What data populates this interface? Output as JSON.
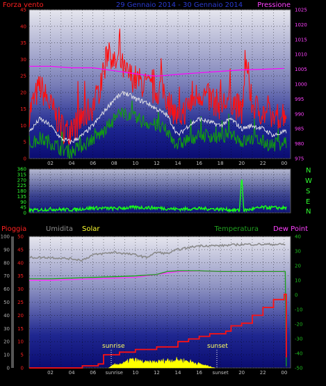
{
  "colors": {
    "wind_max": "#ff1010",
    "wind_avg": "#e8e8e8",
    "wind_min": "#129a12",
    "pressure": "#ff00ff",
    "direction": "#18ff18",
    "rain": "#ff1010",
    "humidity": "#8a8a8a",
    "solar": "#ffff00",
    "temperature": "#1aa01a",
    "dewpoint": "#ff30ff",
    "wind_axis": "#ff2020",
    "pressure_axis": "#ff40ff",
    "direction_axis": "#30ff30",
    "rain_axis": "#ff2020",
    "humidity_axis": "#b0b0b0",
    "temp_axis": "#20c020"
  },
  "header": {
    "wind_label": "Forza vento",
    "date_range": "29 Gennaio 2014 - 30 Gennaio 2014",
    "pressure_label": "Pressione"
  },
  "legend2": {
    "rain_label": "Pioggia",
    "humidity_label": "Umidita",
    "solar_label": "Solar",
    "temp_label": "Temperatura",
    "dew_label": "Dew Point"
  },
  "compass": [
    "N",
    "W",
    "S",
    "E",
    "N"
  ],
  "annotations": {
    "sunrise": "sunrise",
    "sunset": "sunset"
  },
  "chart_data": [
    {
      "type": "line",
      "title": "29 Gennaio 2014 - 30 Gennaio 2014",
      "x_ticks": [
        "02",
        "04",
        "06",
        "08",
        "10",
        "12",
        "14",
        "16",
        "18",
        "20",
        "22",
        "00"
      ],
      "x_tick_hours": [
        2,
        4,
        6,
        8,
        10,
        12,
        14,
        16,
        18,
        20,
        22,
        24
      ],
      "xlim": [
        0,
        24.6
      ],
      "left_axis": {
        "label": "Forza vento",
        "ylim": [
          0,
          45
        ],
        "ticks": [
          0,
          5,
          10,
          15,
          20,
          25,
          30,
          35,
          40,
          45
        ]
      },
      "right_axis": {
        "label": "Pressione",
        "ylim": [
          975,
          1025
        ],
        "ticks": [
          975,
          980,
          985,
          990,
          995,
          1000,
          1005,
          1010,
          1015,
          1020,
          1025
        ]
      },
      "grid": true,
      "series": [
        {
          "name": "wind_max",
          "axis": "left",
          "style": "spiky",
          "x": [
            0,
            1,
            2,
            3,
            3.5,
            4,
            5,
            6,
            6.5,
            7,
            7.5,
            8,
            8.5,
            9,
            10,
            11,
            12,
            12.5,
            13,
            14,
            15,
            16,
            17,
            18,
            19,
            20,
            20.5,
            21,
            22,
            23,
            24
          ],
          "y": [
            14,
            22,
            16,
            10,
            8,
            9,
            12,
            16,
            20,
            26,
            34,
            28,
            30,
            26,
            24,
            22,
            20,
            22,
            18,
            12,
            16,
            20,
            18,
            16,
            18,
            14,
            28,
            16,
            14,
            12,
            14
          ]
        },
        {
          "name": "wind_avg",
          "axis": "left",
          "style": "line",
          "x": [
            0,
            1,
            2,
            3,
            4,
            5,
            6,
            7,
            8,
            9,
            10,
            11,
            12,
            13,
            14,
            15,
            16,
            17,
            18,
            19,
            20,
            21,
            22,
            23,
            24
          ],
          "y": [
            8,
            12,
            10,
            6,
            5,
            7,
            10,
            14,
            18,
            20,
            18,
            17,
            15,
            13,
            7,
            10,
            12,
            11,
            10,
            12,
            9,
            10,
            9,
            7,
            8
          ]
        },
        {
          "name": "wind_min",
          "axis": "left",
          "style": "spiky",
          "x": [
            0,
            1,
            2,
            3,
            4,
            5,
            6,
            7,
            8,
            9,
            10,
            11,
            12,
            13,
            14,
            15,
            16,
            17,
            18,
            19,
            20,
            21,
            22,
            23,
            24
          ],
          "y": [
            4,
            6,
            5,
            3,
            2,
            4,
            6,
            8,
            12,
            14,
            12,
            11,
            10,
            8,
            4,
            6,
            7,
            7,
            6,
            8,
            5,
            6,
            5,
            4,
            5
          ]
        },
        {
          "name": "pressure",
          "axis": "right",
          "style": "line",
          "x": [
            0,
            2,
            4,
            6,
            7,
            8,
            9,
            10,
            11,
            12,
            13,
            14,
            16,
            18,
            20,
            22,
            24
          ],
          "y": [
            1006,
            1006,
            1005.5,
            1005.5,
            1005,
            1004.5,
            1004,
            1003.5,
            1003,
            1002.7,
            1003,
            1003.3,
            1003.8,
            1004.3,
            1004.8,
            1005,
            1005.3
          ]
        }
      ]
    },
    {
      "type": "line",
      "title": "",
      "x_ticks": [],
      "xlim": [
        0,
        24.6
      ],
      "left_axis": {
        "label": "",
        "ylim": [
          0,
          360
        ],
        "ticks": [
          0,
          45,
          90,
          135,
          180,
          225,
          270,
          315,
          360
        ]
      },
      "right_axis": {
        "label": "",
        "tick_labels": [
          "N",
          "W",
          "S",
          "E",
          "N"
        ]
      },
      "grid": true,
      "series": [
        {
          "name": "direction",
          "axis": "left",
          "style": "spiky",
          "x": [
            0,
            2,
            4,
            6,
            8,
            10,
            12,
            14,
            16,
            18,
            19.8,
            20,
            20.2,
            22,
            24
          ],
          "y": [
            20,
            30,
            25,
            40,
            35,
            45,
            40,
            30,
            35,
            30,
            20,
            310,
            20,
            45,
            40
          ]
        }
      ]
    },
    {
      "type": "line",
      "title": "",
      "x_ticks": [
        "02",
        "04",
        "06",
        "sunrise",
        "10",
        "12",
        "14",
        "16",
        "sunset",
        "20",
        "22",
        "00"
      ],
      "x_tick_hours": [
        2,
        4,
        6,
        8,
        10,
        12,
        14,
        16,
        18,
        20,
        22,
        24
      ],
      "xlim": [
        0,
        24.6
      ],
      "left_axis": {
        "label": "Pioggia",
        "ylim": [
          0,
          50
        ],
        "ticks": [
          0,
          5,
          10,
          15,
          20,
          25,
          30,
          35,
          40,
          45,
          50
        ]
      },
      "left2_axis": {
        "label": "Umidita",
        "ylim": [
          0,
          100
        ],
        "ticks": [
          0,
          10,
          20,
          30,
          40,
          50,
          60,
          70,
          80,
          90,
          100
        ]
      },
      "right_axis": {
        "label": "Temperatura",
        "ylim": [
          -50,
          40
        ],
        "ticks": [
          -50,
          -40,
          -30,
          -20,
          -10,
          0,
          10,
          20,
          30,
          40
        ]
      },
      "grid": true,
      "series": [
        {
          "name": "rain",
          "axis": "left",
          "style": "step",
          "x": [
            0,
            4,
            5,
            6.5,
            7,
            8.5,
            10,
            12,
            14,
            15,
            16,
            17,
            18,
            18.5,
            19,
            20,
            21,
            22,
            23,
            24,
            24.1,
            24.2
          ],
          "y": [
            0,
            0,
            0.8,
            1.5,
            5,
            6,
            7,
            8,
            10,
            11,
            12,
            13,
            13,
            14,
            16,
            17,
            20,
            23,
            26,
            28,
            28,
            4
          ]
        },
        {
          "name": "humidity",
          "axis": "left2",
          "style": "line",
          "x": [
            0,
            2,
            4,
            5,
            6,
            8,
            10,
            11,
            12,
            13,
            14,
            16,
            18,
            20,
            22,
            24,
            24.1
          ],
          "y": [
            84,
            84,
            83,
            82,
            86,
            88,
            86,
            84,
            88,
            87,
            90,
            93,
            93,
            94,
            94,
            94,
            94
          ]
        },
        {
          "name": "solar",
          "axis": "left",
          "style": "area",
          "x": [
            7.5,
            8,
            9,
            9.5,
            10,
            11,
            12,
            13,
            14,
            15,
            16,
            17,
            17.5
          ],
          "y": [
            0,
            1.2,
            1.8,
            3,
            2.8,
            2,
            2.2,
            2.8,
            3,
            2.5,
            1.5,
            0.5,
            0
          ]
        },
        {
          "name": "temperature",
          "axis": "right",
          "style": "line",
          "x": [
            0,
            2,
            4,
            6,
            8,
            10,
            12,
            13,
            14,
            16,
            18,
            20,
            22,
            24,
            24.1,
            24.2
          ],
          "y": [
            11,
            11,
            11.5,
            12,
            12.5,
            13,
            14,
            16,
            16.5,
            16.5,
            16,
            16,
            16,
            16,
            16,
            -49
          ]
        },
        {
          "name": "dewpoint",
          "axis": "right",
          "style": "line",
          "x": [
            0,
            2,
            4,
            6,
            8,
            10,
            12,
            13,
            14,
            16,
            18,
            20,
            22,
            24
          ],
          "y": [
            10,
            10,
            10.5,
            11,
            11.5,
            12,
            14,
            15,
            16,
            16.5,
            16,
            16,
            16,
            16
          ]
        }
      ],
      "annotations": [
        {
          "label": "sunrise",
          "x": 7.5
        },
        {
          "label": "sunset",
          "x": 17.5
        }
      ]
    }
  ]
}
